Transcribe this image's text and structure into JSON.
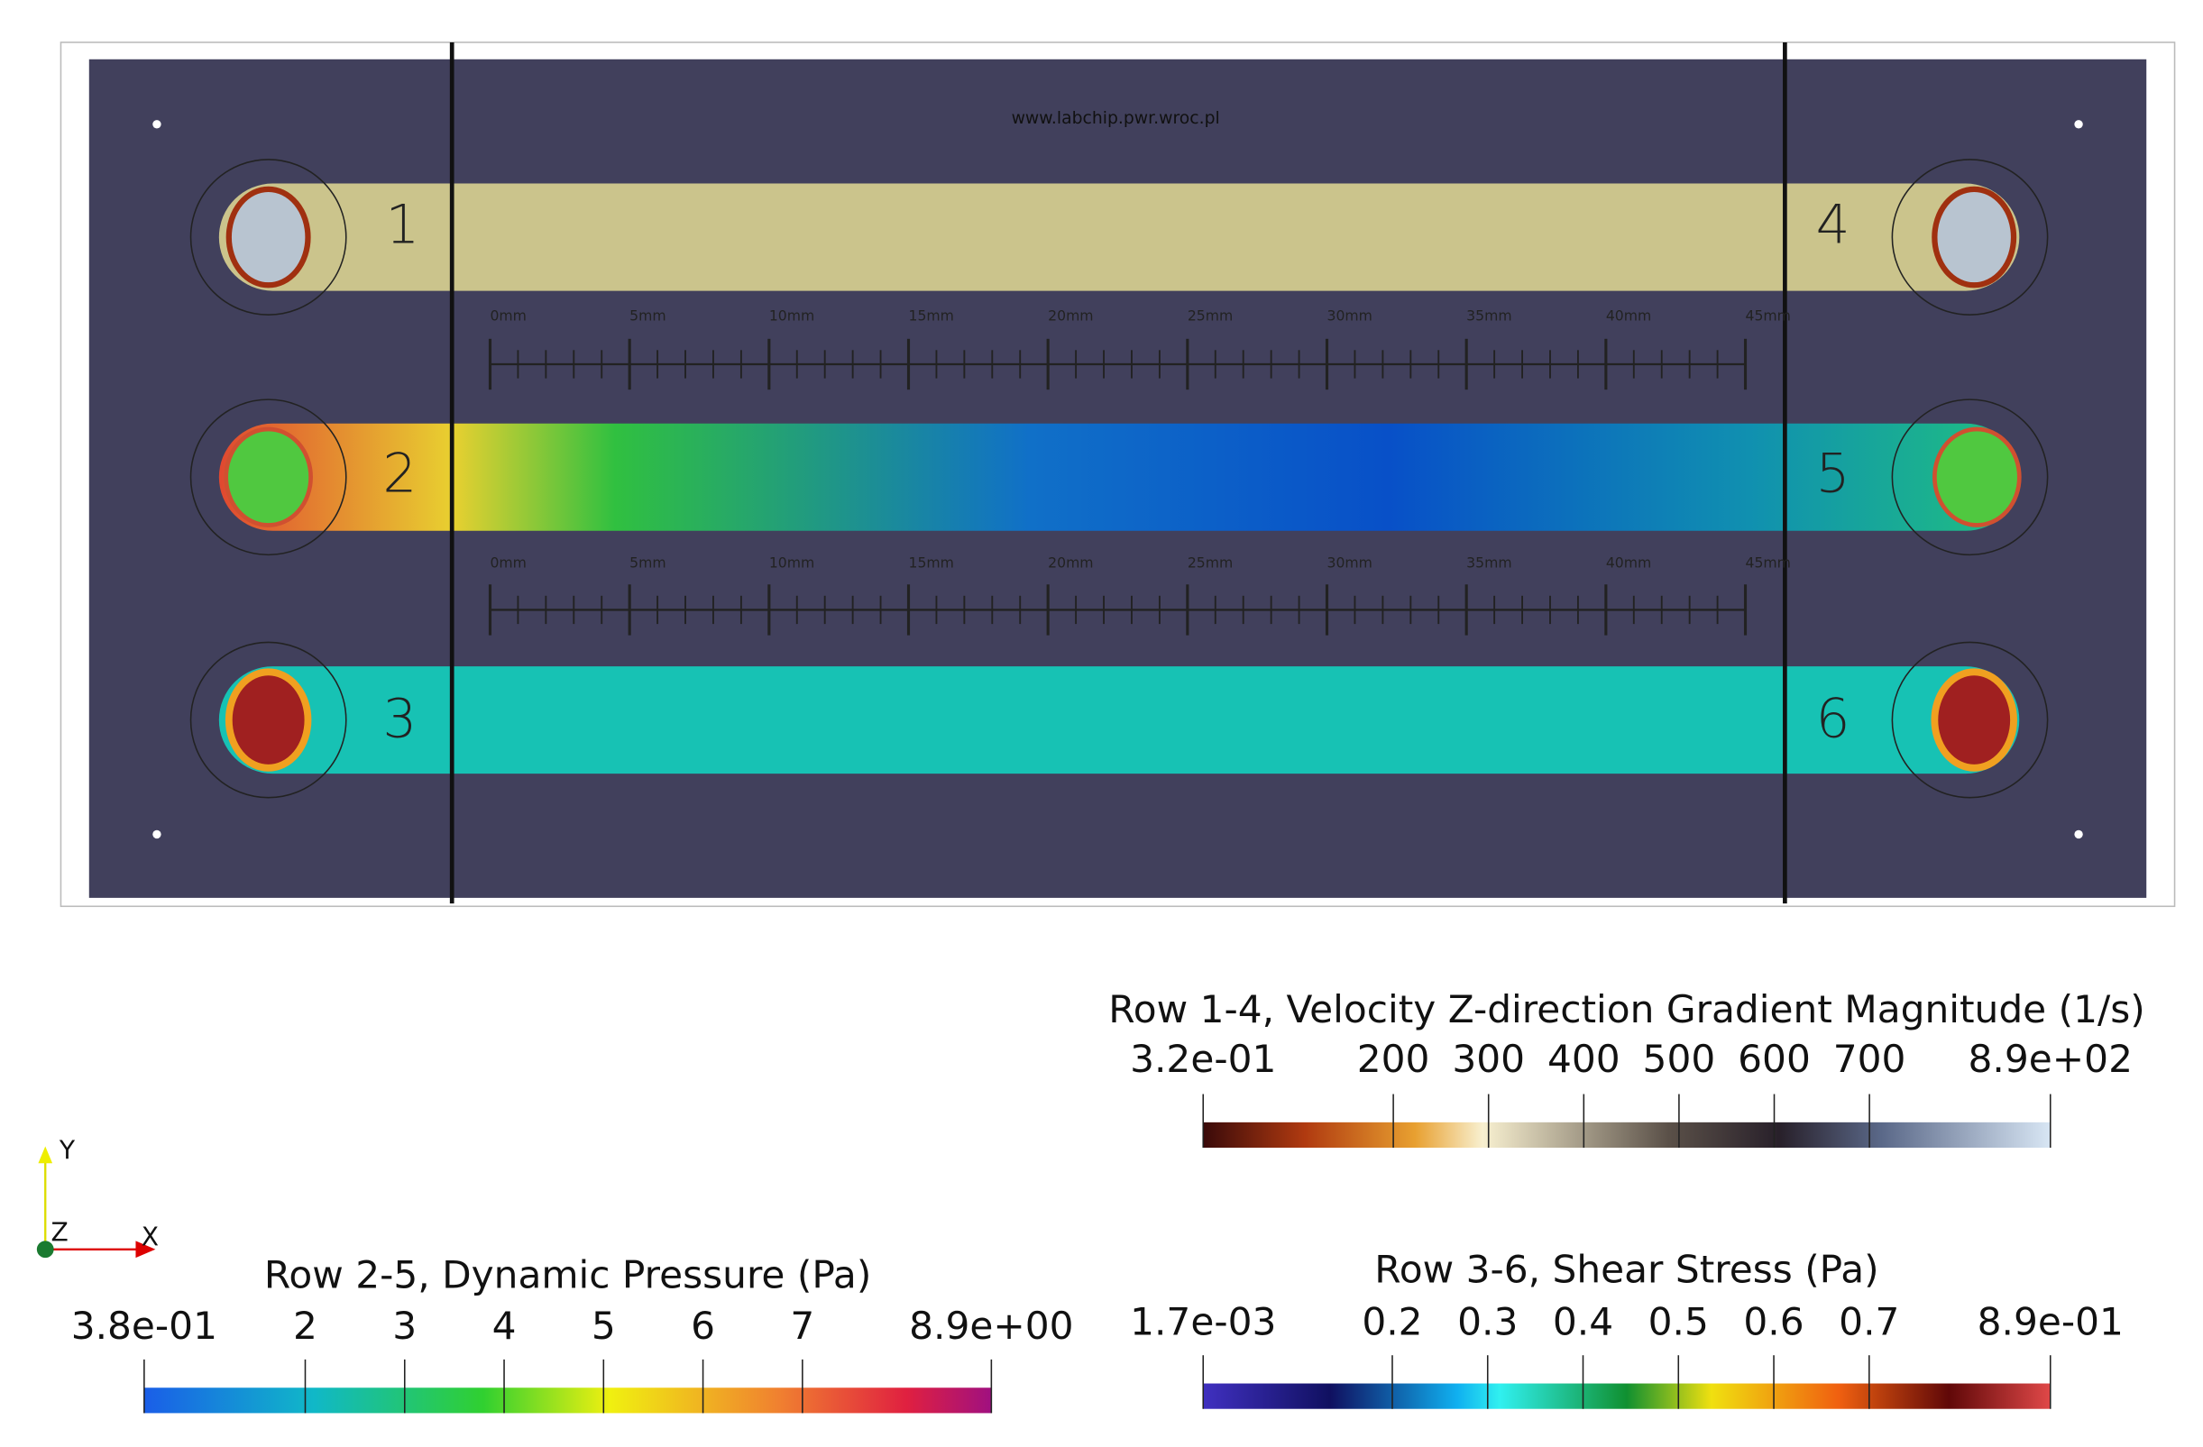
{
  "watermark": "www.labchip.pwr.wroc.pl",
  "channel_labels": [
    "1",
    "2",
    "3",
    "4",
    "5",
    "6"
  ],
  "ruler_labels": [
    "0mm",
    "5mm",
    "10mm",
    "15mm",
    "20mm",
    "25mm",
    "30mm",
    "35mm",
    "40mm",
    "45mm"
  ],
  "colorbars": [
    {
      "title": "Row 1-4, Velocity Z-direction Gradient Magnitude (1/s)",
      "tick_labels": [
        "3.2e-01",
        "200",
        "300",
        "400",
        "500",
        "600",
        "700",
        "8.9e+02"
      ]
    },
    {
      "title": "Row 2-5, Dynamic Pressure (Pa)",
      "tick_labels": [
        "3.8e-01",
        "2",
        "3",
        "4",
        "5",
        "6",
        "7",
        "8.9e+00"
      ]
    },
    {
      "title": "Row 3-6, Shear Stress (Pa)",
      "tick_labels": [
        "1.7e-03",
        "0.2",
        "0.3",
        "0.4",
        "0.5",
        "0.6",
        "0.7",
        "8.9e-01"
      ]
    }
  ],
  "axes": {
    "y": "Y",
    "z": "Z",
    "x": "X"
  }
}
